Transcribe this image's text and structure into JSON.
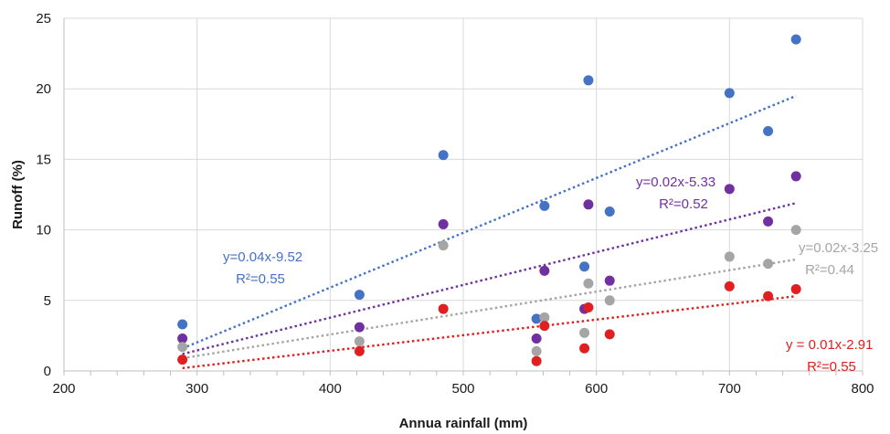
{
  "chart_data": {
    "type": "scatter",
    "title": "",
    "xlabel": "Annua rainfall (mm)",
    "ylabel": "Runoff (%)",
    "xlim": [
      200,
      800
    ],
    "ylim": [
      0,
      25
    ],
    "x_ticks": [
      200,
      300,
      400,
      500,
      600,
      700,
      800
    ],
    "y_ticks": [
      0,
      5,
      10,
      15,
      20,
      25
    ],
    "grid": true,
    "legend": "none",
    "series": [
      {
        "color": "#4472c4",
        "points": [
          [
            289,
            3.3
          ],
          [
            422,
            5.4
          ],
          [
            485,
            15.3
          ],
          [
            555,
            3.7
          ],
          [
            561,
            11.7
          ],
          [
            591,
            7.4
          ],
          [
            594,
            20.6
          ],
          [
            610,
            11.3
          ],
          [
            700,
            19.7
          ],
          [
            729,
            17.0
          ],
          [
            750,
            23.5
          ]
        ],
        "trend": {
          "x": [
            289,
            750
          ],
          "y": [
            1.6,
            19.5
          ]
        },
        "annotation": [
          "y=0.04x-9.52",
          "R²=0.55"
        ]
      },
      {
        "color": "#7030a0",
        "points": [
          [
            289,
            2.3
          ],
          [
            422,
            3.1
          ],
          [
            485,
            10.4
          ],
          [
            555,
            2.3
          ],
          [
            561,
            7.1
          ],
          [
            591,
            4.4
          ],
          [
            594,
            11.8
          ],
          [
            610,
            6.4
          ],
          [
            700,
            12.9
          ],
          [
            729,
            10.6
          ],
          [
            750,
            13.8
          ]
        ],
        "trend": {
          "x": [
            289,
            750
          ],
          "y": [
            1.2,
            11.9
          ]
        },
        "annotation": [
          "y=0.02x-5.33",
          "R²=0.52"
        ]
      },
      {
        "color": "#a5a5a5",
        "points": [
          [
            289,
            1.7
          ],
          [
            422,
            2.1
          ],
          [
            485,
            8.9
          ],
          [
            555,
            1.4
          ],
          [
            561,
            3.8
          ],
          [
            591,
            2.7
          ],
          [
            594,
            6.2
          ],
          [
            610,
            5.0
          ],
          [
            700,
            8.1
          ],
          [
            729,
            7.6
          ],
          [
            750,
            10.0
          ]
        ],
        "trend": {
          "x": [
            289,
            750
          ],
          "y": [
            0.9,
            7.9
          ]
        },
        "annotation": [
          "y=0.02x-3.25",
          "R²=0.44"
        ]
      },
      {
        "color": "#e02020",
        "points": [
          [
            289,
            0.8
          ],
          [
            422,
            1.4
          ],
          [
            485,
            4.4
          ],
          [
            555,
            0.7
          ],
          [
            561,
            3.2
          ],
          [
            591,
            1.6
          ],
          [
            594,
            4.5
          ],
          [
            610,
            2.6
          ],
          [
            700,
            6.0
          ],
          [
            729,
            5.3
          ],
          [
            750,
            5.8
          ]
        ],
        "trend": {
          "x": [
            289,
            750
          ],
          "y": [
            0.2,
            5.3
          ]
        },
        "annotation": [
          "y = 0.01x-2.91",
          "R²=0.55"
        ]
      }
    ]
  }
}
